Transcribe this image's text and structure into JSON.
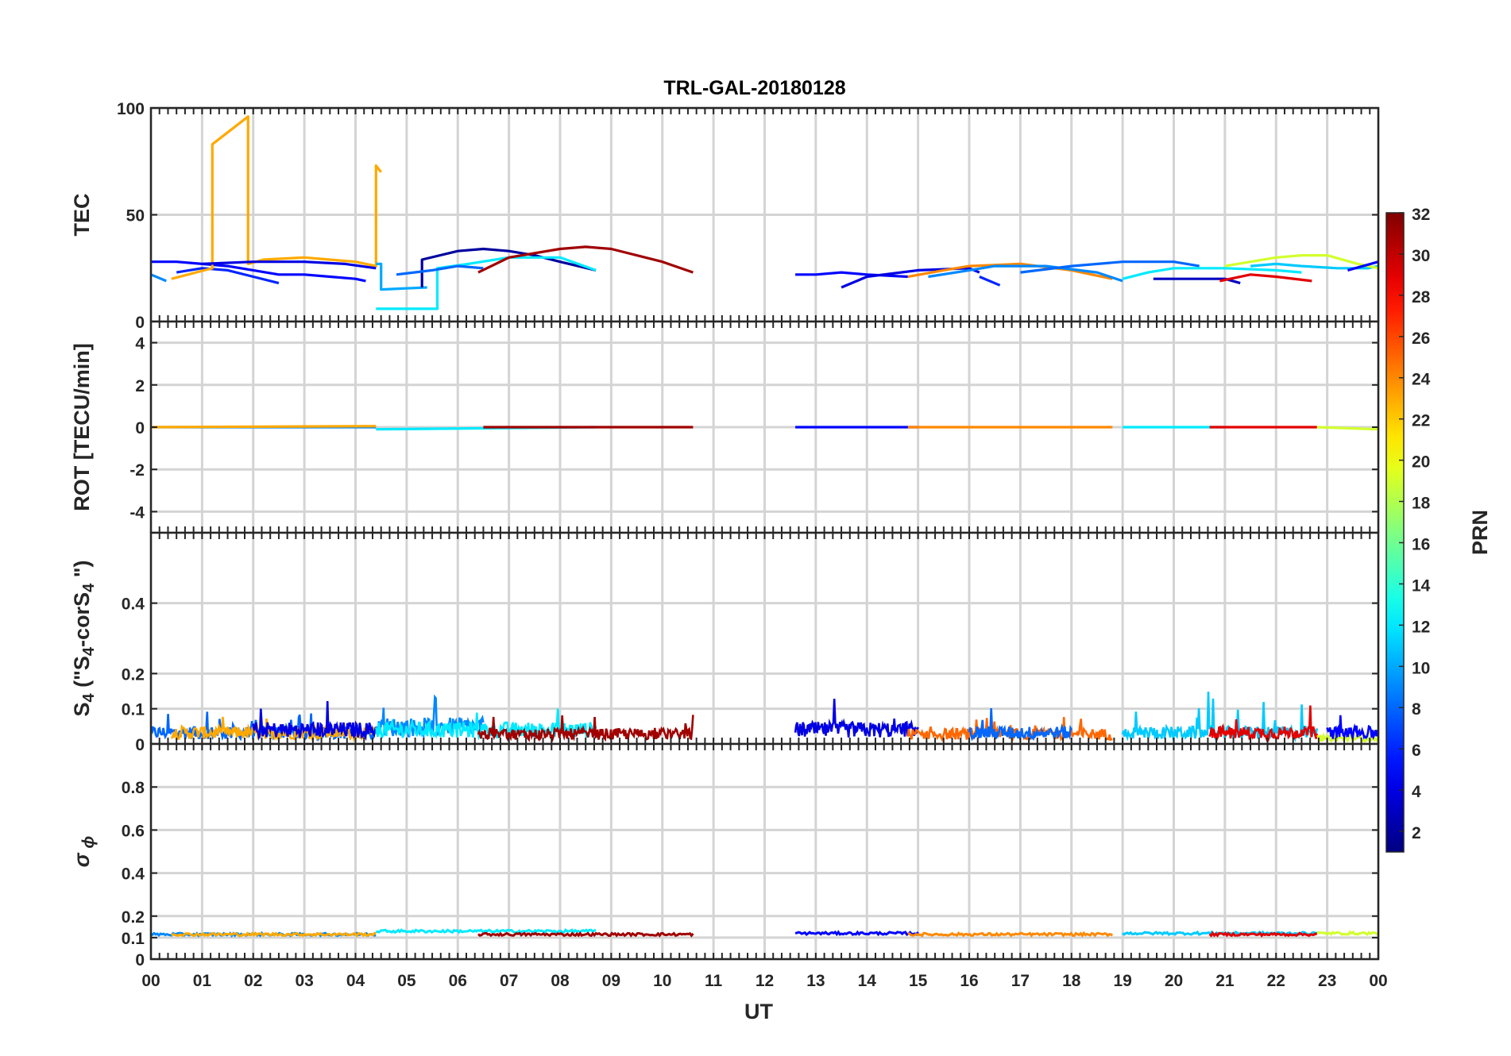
{
  "chart_data": {
    "type": "line",
    "title": "TRL-GAL-20180128",
    "xlabel": "UT",
    "xlim": [
      0,
      24
    ],
    "x_ticks": [
      "00",
      "01",
      "02",
      "03",
      "04",
      "05",
      "06",
      "07",
      "08",
      "09",
      "10",
      "11",
      "12",
      "13",
      "14",
      "15",
      "16",
      "17",
      "18",
      "19",
      "20",
      "21",
      "22",
      "23",
      "00"
    ],
    "grid": true,
    "colorbar": {
      "label": "PRN",
      "colormap": "jet",
      "range": [
        1,
        32
      ],
      "ticks": [
        "2",
        "4",
        "6",
        "8",
        "10",
        "12",
        "14",
        "16",
        "18",
        "20",
        "22",
        "24",
        "26",
        "28",
        "30",
        "32"
      ]
    },
    "panels": [
      {
        "id": "tec",
        "ylabel": "TEC",
        "ylim": [
          0,
          100
        ],
        "y_ticks": [
          "0",
          "50",
          "100"
        ],
        "series": [
          {
            "prn": 5,
            "x": [
              0,
              0.5,
              1,
              1.5,
              2,
              2.5,
              3,
              3.5,
              4,
              4.2
            ],
            "y": [
              28,
              28,
              27,
              26,
              24,
              22,
              22,
              21,
              20,
              19
            ]
          },
          {
            "prn": 6,
            "x": [
              0.5,
              1,
              1.5,
              2,
              2.5
            ],
            "y": [
              23,
              25,
              24,
              21,
              18
            ]
          },
          {
            "prn": 9,
            "x": [
              0,
              0.3
            ],
            "y": [
              22,
              19
            ]
          },
          {
            "prn": 23,
            "x": [
              0.4,
              1.2,
              1.2,
              1.9,
              1.9,
              2.2,
              3,
              3.5,
              4,
              4.4,
              4.4,
              4.5
            ],
            "y": [
              20,
              25,
              83,
              96,
              27,
              29,
              30,
              29,
              28,
              26,
              73,
              70
            ]
          },
          {
            "prn": 4,
            "x": [
              1,
              2,
              3,
              3.8,
              4.4
            ],
            "y": [
              27,
              28,
              28,
              27,
              25
            ]
          },
          {
            "prn": 10,
            "x": [
              4.4,
              4.5,
              4.5,
              5.4
            ],
            "y": [
              27,
              27,
              15,
              16
            ]
          },
          {
            "prn": 2,
            "x": [
              5.3,
              5.3,
              6,
              6.5,
              7,
              7.5,
              8,
              8.7
            ],
            "y": [
              16,
              29,
              33,
              34,
              33,
              31,
              28,
              24
            ]
          },
          {
            "prn": 12,
            "x": [
              4.4,
              5,
              5.6,
              5.6,
              6.2,
              7,
              8,
              8.7
            ],
            "y": [
              6,
              6,
              6,
              25,
              27,
              30,
              30,
              24
            ]
          },
          {
            "prn": 8,
            "x": [
              4.8,
              5.5,
              6,
              6.5
            ],
            "y": [
              22,
              24,
              26,
              25
            ]
          },
          {
            "prn": 31,
            "x": [
              6.4,
              7,
              8,
              8.5,
              9,
              10,
              10.6
            ],
            "y": [
              23,
              30,
              34,
              35,
              34,
              28,
              23
            ]
          },
          {
            "prn": 5,
            "x": [
              12.6,
              13,
              13.5,
              14,
              14.8
            ],
            "y": [
              22,
              22,
              23,
              22,
              21
            ]
          },
          {
            "prn": 4,
            "x": [
              13.5,
              14,
              15,
              16,
              16.2
            ],
            "y": [
              16,
              21,
              24,
              25,
              23
            ]
          },
          {
            "prn": 24,
            "x": [
              14.8,
              15.5,
              16,
              17,
              18,
              18.8
            ],
            "y": [
              21,
              24,
              26,
              27,
              24,
              20
            ]
          },
          {
            "prn": 6,
            "x": [
              16.2,
              16.6
            ],
            "y": [
              21,
              17
            ]
          },
          {
            "prn": 9,
            "x": [
              15.2,
              16,
              16.5,
              17.5,
              18.5,
              19
            ],
            "y": [
              21,
              24,
              26,
              26,
              23,
              19
            ]
          },
          {
            "prn": 8,
            "x": [
              17,
              18,
              19,
              20,
              20.5
            ],
            "y": [
              23,
              26,
              28,
              28,
              26
            ]
          },
          {
            "prn": 12,
            "x": [
              19,
              19.5,
              20,
              21,
              22,
              22.5
            ],
            "y": [
              20,
              23,
              25,
              25,
              24,
              23
            ]
          },
          {
            "prn": 3,
            "x": [
              19.6,
              20.3,
              21,
              21.3
            ],
            "y": [
              20,
              20,
              20,
              18
            ]
          },
          {
            "prn": 29,
            "x": [
              20.9,
              21.5,
              22,
              22.7
            ],
            "y": [
              19,
              22,
              21,
              19
            ]
          },
          {
            "prn": 11,
            "x": [
              21.5,
              22,
              22.5,
              23.2,
              23.8,
              24
            ],
            "y": [
              26,
              27,
              26,
              25,
              25,
              26
            ]
          },
          {
            "prn": 19,
            "x": [
              21,
              22,
              22.5,
              23,
              23.6,
              24
            ],
            "y": [
              26,
              30,
              31,
              31,
              27,
              25
            ]
          },
          {
            "prn": 5,
            "x": [
              23.4,
              24
            ],
            "y": [
              24,
              28
            ]
          }
        ]
      },
      {
        "id": "rot",
        "ylabel": "ROT [TECU/min]",
        "ylim": [
          -5,
          5
        ],
        "y_ticks": [
          "-4",
          "-2",
          "0",
          "2",
          "4"
        ],
        "series": [
          {
            "prn": 9,
            "x": [
              0,
              4.4
            ],
            "y": [
              0,
              0
            ]
          },
          {
            "prn": 23,
            "x": [
              0,
              4.4
            ],
            "y": [
              0,
              0.05
            ]
          },
          {
            "prn": 12,
            "x": [
              4.4,
              8.7
            ],
            "y": [
              -0.1,
              0
            ]
          },
          {
            "prn": 31,
            "x": [
              6.5,
              10.6
            ],
            "y": [
              0,
              0
            ]
          },
          {
            "prn": 5,
            "x": [
              12.6,
              15
            ],
            "y": [
              0,
              0
            ]
          },
          {
            "prn": 24,
            "x": [
              14.8,
              18.8
            ],
            "y": [
              0,
              0
            ]
          },
          {
            "prn": 12,
            "x": [
              19,
              21
            ],
            "y": [
              0,
              0
            ]
          },
          {
            "prn": 29,
            "x": [
              20.7,
              22.8
            ],
            "y": [
              0,
              0
            ]
          },
          {
            "prn": 19,
            "x": [
              22.8,
              24
            ],
            "y": [
              0,
              -0.1
            ]
          }
        ]
      },
      {
        "id": "s4",
        "ylabel": "S4 (\"S4-corS4\")",
        "ylim": [
          0,
          0.6
        ],
        "y_ticks": [
          "0",
          "0.1",
          "0.2",
          "0.4"
        ],
        "series": [
          {
            "prn": 8,
            "x": [
              0,
              4.4
            ],
            "y_mean": 0.04,
            "y_peak": 0.1
          },
          {
            "prn": 23,
            "x": [
              0.4,
              4.4
            ],
            "y_mean": 0.04,
            "y_peak": 0.08
          },
          {
            "prn": 4,
            "x": [
              2,
              4.4
            ],
            "y_mean": 0.05,
            "y_peak": 0.13
          },
          {
            "prn": 9,
            "x": [
              4.4,
              6.5
            ],
            "y_mean": 0.06,
            "y_peak": 0.16
          },
          {
            "prn": 12,
            "x": [
              4.4,
              8.7
            ],
            "y_mean": 0.05,
            "y_peak": 0.13
          },
          {
            "prn": 31,
            "x": [
              6.4,
              10.6
            ],
            "y_mean": 0.035,
            "y_peak": 0.1
          },
          {
            "prn": 4,
            "x": [
              12.6,
              15
            ],
            "y_mean": 0.05,
            "y_peak": 0.13
          },
          {
            "prn": 25,
            "x": [
              14.8,
              18.8
            ],
            "y_mean": 0.035,
            "y_peak": 0.08
          },
          {
            "prn": 8,
            "x": [
              16,
              18
            ],
            "y_mean": 0.04,
            "y_peak": 0.16
          },
          {
            "prn": 11,
            "x": [
              19,
              22.8
            ],
            "y_mean": 0.04,
            "y_peak": 0.15
          },
          {
            "prn": 29,
            "x": [
              20.7,
              22.8
            ],
            "y_mean": 0.04,
            "y_peak": 0.14
          },
          {
            "prn": 19,
            "x": [
              22.8,
              24
            ],
            "y_mean": 0.02,
            "y_peak": 0.05
          },
          {
            "prn": 5,
            "x": [
              23,
              24
            ],
            "y_mean": 0.04,
            "y_peak": 0.09
          }
        ]
      },
      {
        "id": "sigma",
        "ylabel": "σ ϕ",
        "ylim": [
          0,
          1
        ],
        "y_ticks": [
          "0",
          "0.1",
          "0.2",
          "0.4",
          "0.6",
          "0.8"
        ],
        "series": [
          {
            "prn": 9,
            "x": [
              0,
              4.4
            ],
            "y_mean": 0.115
          },
          {
            "prn": 23,
            "x": [
              0.4,
              4.4
            ],
            "y_mean": 0.115
          },
          {
            "prn": 12,
            "x": [
              4.4,
              8.7
            ],
            "y_mean": 0.13
          },
          {
            "prn": 31,
            "x": [
              6.4,
              10.6
            ],
            "y_mean": 0.115
          },
          {
            "prn": 5,
            "x": [
              12.6,
              15
            ],
            "y_mean": 0.12
          },
          {
            "prn": 24,
            "x": [
              14.8,
              18.8
            ],
            "y_mean": 0.115
          },
          {
            "prn": 11,
            "x": [
              19,
              22.8
            ],
            "y_mean": 0.12
          },
          {
            "prn": 29,
            "x": [
              20.7,
              22.8
            ],
            "y_mean": 0.115
          },
          {
            "prn": 19,
            "x": [
              22.8,
              24
            ],
            "y_mean": 0.12
          }
        ]
      }
    ]
  }
}
